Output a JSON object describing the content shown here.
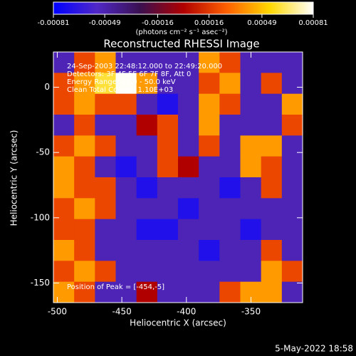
{
  "chart_data": {
    "type": "heatmap",
    "title": "Reconstructed RHESSI Image",
    "xlabel": "Heliocentric X (arcsec)",
    "ylabel": "Heliocentric Y (arcsec)",
    "colorbar_label": "(photons cm⁻² s⁻¹ asec⁻²)",
    "annotations": [
      "24-Sep-2003 22:48:12.000 to 22:49:20.000",
      "Detectors: 3F 4F 5F 6F 7F 8F, Att 0",
      "Energy Range: 25.0 - 50.0 keV",
      "Clean     Total Counts: 1.10E+03"
    ],
    "peak_label": "Position of Peak = [-454,-5]",
    "footer": "5-May-2022 18:58",
    "xlim": [
      -503,
      -310
    ],
    "ylim": [
      -165,
      27
    ],
    "xticks": [
      -500,
      -450,
      -400,
      -350
    ],
    "yticks": [
      0,
      -50,
      -100,
      -150
    ],
    "clim": [
      -0.00081,
      0.00081
    ],
    "cticks": [
      -0.00081,
      -0.00049,
      -0.00016,
      0.00016,
      0.00049,
      0.00081
    ],
    "colormap": [
      "#0000ff",
      "#5028c8",
      "#3a1050",
      "#b00000",
      "#ff6000",
      "#ffd800",
      "#ffffff"
    ],
    "z": [
      [
        -0.0005,
        0.0002,
        0.0004,
        -0.0005,
        -0.0005,
        -0.0005,
        -0.0005,
        0.0004,
        0.0002,
        -0.0005,
        -0.0005,
        -0.0005
      ],
      [
        0.0002,
        0.0004,
        0.0006,
        0.0008,
        0.0004,
        -0.0005,
        -0.0005,
        0.0002,
        0.0004,
        -0.0005,
        0.0002,
        -0.0005
      ],
      [
        0.0002,
        0.0004,
        0.0002,
        0.0002,
        -0.0005,
        -0.0007,
        -0.0005,
        0.0004,
        0.0002,
        -0.0005,
        -0.0005,
        0.0004
      ],
      [
        -0.0005,
        0.0002,
        -0.0005,
        -0.0005,
        0,
        0.0002,
        -0.0005,
        0.0004,
        -0.0005,
        -0.0005,
        -0.0005,
        0.0002
      ],
      [
        0.0002,
        0.0004,
        0.0002,
        -0.0005,
        -0.0005,
        0.0002,
        -0.0005,
        0.0002,
        -0.0005,
        0.0004,
        0.0004,
        -0.0005
      ],
      [
        0.0004,
        0.0002,
        -0.0005,
        -0.0007,
        -0.0005,
        0.0002,
        0,
        -0.0005,
        -0.0005,
        0.0004,
        0.0002,
        -0.0005
      ],
      [
        0.0004,
        0.0002,
        0.0002,
        -0.0005,
        -0.0007,
        -0.0005,
        -0.0005,
        -0.0005,
        -0.0007,
        -0.0005,
        0.0002,
        -0.0005
      ],
      [
        0.0002,
        0.0004,
        0.0002,
        -0.0005,
        -0.0005,
        -0.0005,
        -0.0007,
        -0.0005,
        -0.0005,
        -0.0005,
        -0.0005,
        -0.0005
      ],
      [
        0.0002,
        0.0002,
        -0.0005,
        -0.0005,
        -0.0007,
        -0.0007,
        -0.0005,
        -0.0005,
        -0.0005,
        -0.0007,
        -0.0005,
        -0.0005
      ],
      [
        0.0004,
        0.0002,
        -0.0005,
        -0.0005,
        -0.0005,
        -0.0005,
        -0.0005,
        -0.0007,
        -0.0005,
        -0.0005,
        0.0002,
        -0.0005
      ],
      [
        0.0002,
        0.0004,
        0.0002,
        -0.0005,
        -0.0005,
        -0.0005,
        -0.0005,
        -0.0005,
        -0.0005,
        -0.0005,
        0.0004,
        0.0002
      ],
      [
        0.0004,
        0.0002,
        -0.0005,
        -0.0005,
        0,
        -0.0005,
        -0.0005,
        -0.0005,
        0.0002,
        0.0004,
        0.0004,
        -0.0005
      ]
    ]
  }
}
